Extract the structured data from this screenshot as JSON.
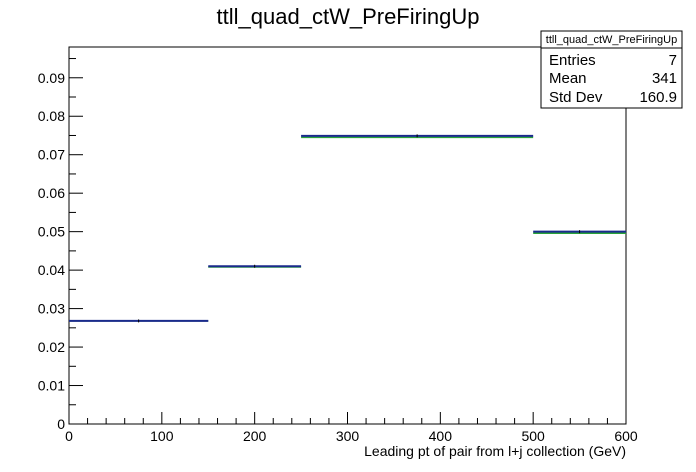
{
  "chart_data": {
    "type": "histogram",
    "title": "ttll_quad_ctW_PreFiringUp",
    "xlabel": "Leading pt of pair from l+j collection (GeV)",
    "ylabel": "",
    "xlim": [
      0,
      600
    ],
    "ylim": [
      0,
      0.098
    ],
    "x_ticks": [
      "0",
      "100",
      "200",
      "300",
      "400",
      "500",
      "600"
    ],
    "y_ticks": [
      "0",
      "0.01",
      "0.02",
      "0.03",
      "0.04",
      "0.05",
      "0.06",
      "0.07",
      "0.08",
      "0.09"
    ],
    "grid": false,
    "bins": [
      {
        "x_low": 0,
        "x_high": 150,
        "nominal": 0.0268,
        "variation": 0.0268
      },
      {
        "x_low": 150,
        "x_high": 250,
        "nominal": 0.041,
        "variation": 0.0408
      },
      {
        "x_low": 250,
        "x_high": 500,
        "nominal": 0.0749,
        "variation": 0.0745
      },
      {
        "x_low": 500,
        "x_high": 600,
        "nominal": 0.05,
        "variation": 0.0496
      }
    ],
    "colors": {
      "nominal": "#1a2a8c",
      "variation": "#2aa33a",
      "error": "#000000"
    },
    "stats_box": {
      "name": "ttll_quad_ctW_PreFiringUp",
      "entries_label": "Entries",
      "entries": "7",
      "mean_label": "Mean",
      "mean": "341",
      "stddev_label": "Std Dev",
      "stddev": "160.9"
    }
  }
}
